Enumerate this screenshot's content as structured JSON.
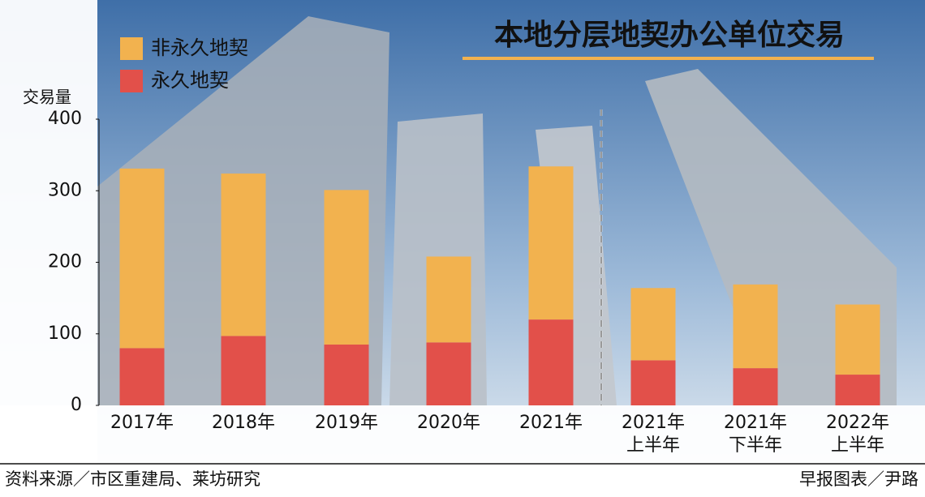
{
  "chart_data": {
    "type": "stacked-bar",
    "title": "本地分层地契办公单位交易",
    "y_label": "交易量",
    "source": "资料来源／市区重建局、莱坊研究",
    "credit": "早报图表／尹路",
    "categories": [
      "2017年",
      "2018年",
      "2019年",
      "2020年",
      "2021年",
      "2021年\n上半年",
      "2021年\n下半年",
      "2022年\n上半年"
    ],
    "series": [
      {
        "name": "永久地契",
        "color": "#e2504a",
        "values": [
          80,
          97,
          85,
          88,
          120,
          63,
          52,
          43
        ]
      },
      {
        "name": "非永久地契",
        "color": "#f2b24f",
        "values": [
          251,
          227,
          216,
          120,
          214,
          101,
          117,
          98
        ]
      }
    ],
    "ylim": [
      0,
      400
    ],
    "yticks": [
      0,
      100,
      200,
      300,
      400
    ]
  }
}
